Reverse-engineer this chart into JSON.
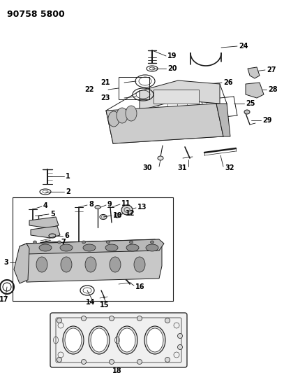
{
  "title": "90758 5800",
  "bg_color": "#ffffff",
  "lc": "#1a1a1a",
  "fig_width": 4.07,
  "fig_height": 5.33,
  "dpi": 100,
  "title_fs": 9,
  "label_fs": 7.0
}
